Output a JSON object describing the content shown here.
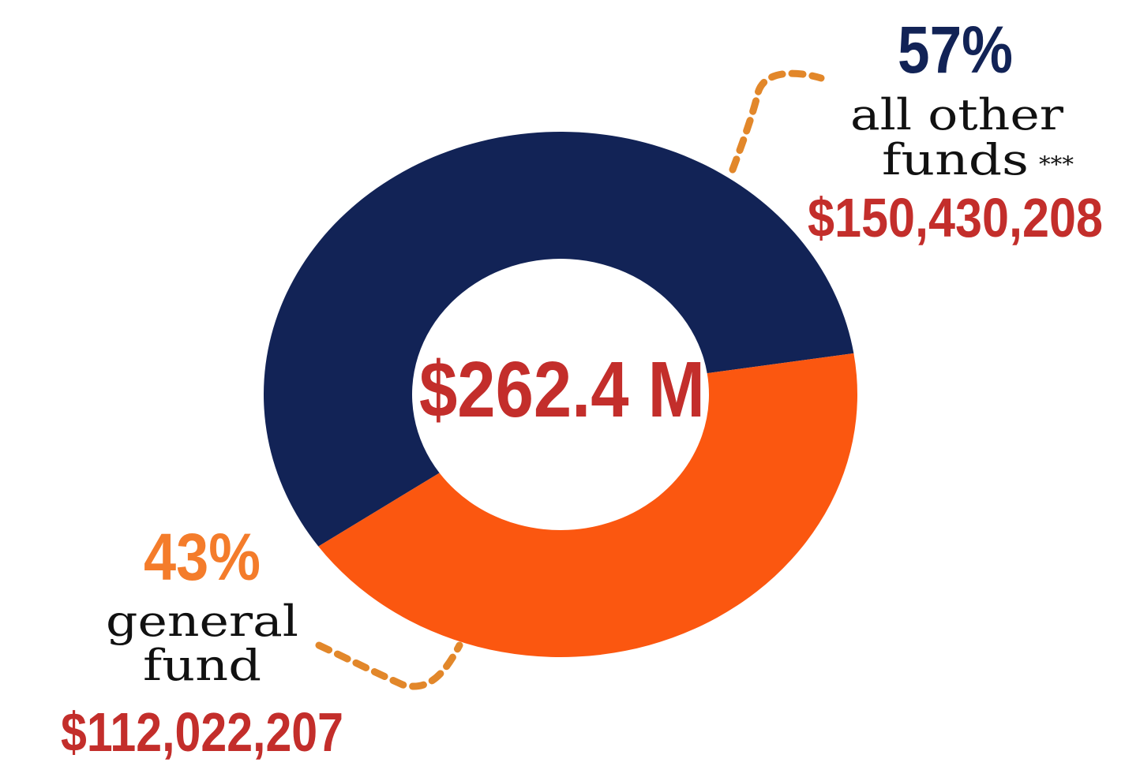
{
  "chart_data": {
    "type": "pie",
    "center_label": "$262.4 M",
    "slices": [
      {
        "percent_label": "57%",
        "label_line1": "all other",
        "label_line2": "funds",
        "footnote_mark": "***",
        "amount_label": "$150,430,208",
        "value": 150430208,
        "color": "#122356",
        "percent_color": "#122356"
      },
      {
        "percent_label": "43%",
        "label_line1": "general",
        "label_line2": "fund",
        "amount_label": "$112,022,207",
        "value": 112022207,
        "color": "#fb5710",
        "percent_color": "#f47c2b"
      }
    ],
    "leader_color": "#e2872a",
    "amount_color": "#c32e2b",
    "label_color": "#111111"
  }
}
